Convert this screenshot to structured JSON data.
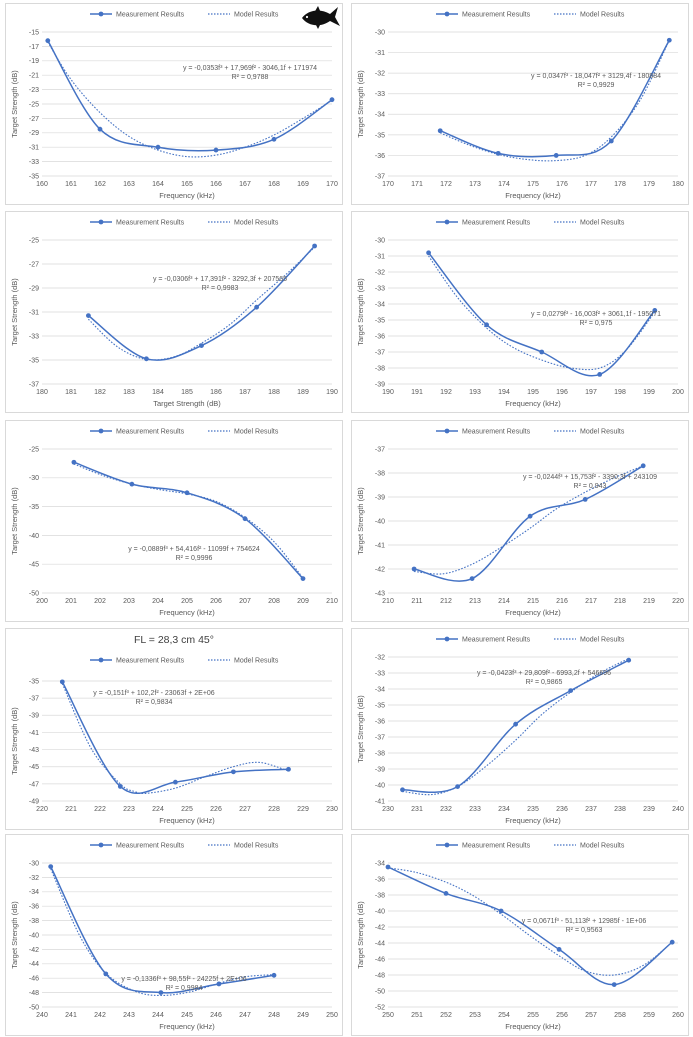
{
  "legend": {
    "measurement": "Measurement Results",
    "model": "Model Results"
  },
  "colors": {
    "series": "#4472c4",
    "grid": "#d9d9d9",
    "text": "#595959"
  },
  "chart_data": [
    {
      "type": "line",
      "title": "",
      "xlabel": "Frequency (kHz)",
      "ylabel": "Target Strength (dB)",
      "xlim": [
        160,
        170
      ],
      "xstep": 1,
      "ylim": [
        -35,
        -15
      ],
      "ystep": 2,
      "measured": [
        [
          160.2,
          -16.2
        ],
        [
          162,
          -28.5
        ],
        [
          164,
          -31
        ],
        [
          166,
          -31.4
        ],
        [
          168,
          -29.9
        ],
        [
          170,
          -24.4
        ]
      ],
      "model": [
        [
          160.2,
          -16.4
        ],
        [
          161,
          -21.6
        ],
        [
          162,
          -26.2
        ],
        [
          163,
          -29.5
        ],
        [
          164,
          -31.4
        ],
        [
          165,
          -32.3
        ],
        [
          166,
          -32.1
        ],
        [
          167,
          -31.0
        ],
        [
          168,
          -29.3
        ],
        [
          169,
          -27.0
        ],
        [
          170,
          -24.5
        ]
      ],
      "equation": "y = -0,0353f³ + 17,969f² - 3046,1f + 171974",
      "r2": "R² = 0,9788"
    },
    {
      "type": "line",
      "title": "",
      "xlabel": "Frequency (kHz)",
      "ylabel": "Target Strength (dB)",
      "xlim": [
        170,
        180
      ],
      "xstep": 1,
      "ylim": [
        -37,
        -30
      ],
      "ystep": 1,
      "measured": [
        [
          171.8,
          -34.8
        ],
        [
          173.8,
          -35.9
        ],
        [
          175.8,
          -36
        ],
        [
          177.7,
          -35.3
        ],
        [
          179.7,
          -30.4
        ]
      ],
      "model": [
        [
          171.8,
          -34.9
        ],
        [
          172.8,
          -35.5
        ],
        [
          173.8,
          -35.95
        ],
        [
          174.8,
          -36.2
        ],
        [
          175.8,
          -36.25
        ],
        [
          176.8,
          -36.0
        ],
        [
          177.7,
          -35.1
        ],
        [
          178.7,
          -33.3
        ],
        [
          179.7,
          -30.4
        ]
      ],
      "equation": "y = 0,0347f³ - 18,047f² + 3129,4f - 180884",
      "r2": "R² = 0,9929"
    },
    {
      "type": "line",
      "title": "",
      "xlabel": "Target Strength (dB)",
      "ylabel": "Target Strength (dB)",
      "xlim": [
        180,
        190
      ],
      "xstep": 1,
      "ylim": [
        -37,
        -25
      ],
      "ystep": 2,
      "measured": [
        [
          181.6,
          -31.3
        ],
        [
          183.6,
          -34.9
        ],
        [
          185.5,
          -33.8
        ],
        [
          187.4,
          -30.6
        ],
        [
          189.4,
          -25.5
        ]
      ],
      "model": [
        [
          181.6,
          -31.6
        ],
        [
          182.6,
          -33.9
        ],
        [
          183.6,
          -34.95
        ],
        [
          184.6,
          -34.7
        ],
        [
          185.5,
          -33.6
        ],
        [
          186.5,
          -32.0
        ],
        [
          187.4,
          -30.0
        ],
        [
          188.4,
          -27.9
        ],
        [
          189.4,
          -25.6
        ]
      ],
      "equation": "y = -0,0306f³ + 17,391f² - 3292,3f + 207565",
      "r2": "R² = 0,9983"
    },
    {
      "type": "line",
      "title": "",
      "xlabel": "Frequency (kHz)",
      "ylabel": "Target Strength (dB)",
      "xlim": [
        190,
        200
      ],
      "xstep": 1,
      "ylim": [
        -39,
        -30
      ],
      "ystep": 1,
      "measured": [
        [
          191.4,
          -30.8
        ],
        [
          193.4,
          -35.3
        ],
        [
          195.3,
          -37
        ],
        [
          197.3,
          -38.4
        ],
        [
          199.2,
          -34.4
        ]
      ],
      "model": [
        [
          191.4,
          -31.0
        ],
        [
          192.4,
          -33.6
        ],
        [
          193.4,
          -35.5
        ],
        [
          194.3,
          -36.7
        ],
        [
          195.3,
          -37.5
        ],
        [
          196.3,
          -38.0
        ],
        [
          197.3,
          -38.0
        ],
        [
          198.2,
          -36.9
        ],
        [
          199.2,
          -34.5
        ]
      ],
      "equation": "y = 0,0279f³ - 16,003f² + 3061,1f - 195071",
      "r2": "R² = 0,975"
    },
    {
      "type": "line",
      "title": "",
      "xlabel": "Frequency (kHz)",
      "ylabel": "Target Strength (dB)",
      "xlim": [
        200,
        210
      ],
      "xstep": 1,
      "ylim": [
        -50,
        -25
      ],
      "ystep": 5,
      "measured": [
        [
          201.1,
          -27.3
        ],
        [
          203.1,
          -31.1
        ],
        [
          205,
          -32.6
        ],
        [
          207,
          -37.1
        ],
        [
          209,
          -47.5
        ]
      ],
      "model": [
        [
          201.1,
          -27.6
        ],
        [
          202.1,
          -29.6
        ],
        [
          203.1,
          -31.1
        ],
        [
          204,
          -32.0
        ],
        [
          205,
          -32.8
        ],
        [
          206,
          -34.1
        ],
        [
          207,
          -36.9
        ],
        [
          208,
          -41.1
        ],
        [
          209,
          -47.4
        ]
      ],
      "equation": "y = -0,0889f³ + 54,416f² - 11099f + 754624",
      "r2": "R² = 0,9996"
    },
    {
      "type": "line",
      "title": "",
      "xlabel": "Frequency (kHz)",
      "ylabel": "Target Strength (dB)",
      "xlim": [
        210,
        220
      ],
      "xstep": 1,
      "ylim": [
        -43,
        -37
      ],
      "ystep": 1,
      "measured": [
        [
          210.9,
          -42
        ],
        [
          212.9,
          -42.4
        ],
        [
          214.9,
          -39.8
        ],
        [
          216.8,
          -39.1
        ],
        [
          218.8,
          -37.7
        ]
      ],
      "model": [
        [
          210.9,
          -42.1
        ],
        [
          211.9,
          -42.2
        ],
        [
          212.9,
          -41.8
        ],
        [
          213.9,
          -41.1
        ],
        [
          214.9,
          -40.3
        ],
        [
          215.8,
          -39.5
        ],
        [
          216.8,
          -38.8
        ],
        [
          217.8,
          -38.2
        ],
        [
          218.8,
          -37.7
        ]
      ],
      "equation": "y = -0,0244f³ + 15,753f² - 3390,3f + 243109",
      "r2": "R² = 0,943"
    },
    {
      "type": "line",
      "title": "FL = 28,3 cm 45°",
      "xlabel": "Frequency (kHz)",
      "ylabel": "Target Strength (dB)",
      "xlim": [
        220,
        230
      ],
      "xstep": 1,
      "ylim": [
        -49,
        -35
      ],
      "ystep": 2,
      "measured": [
        [
          220.7,
          -35.1
        ],
        [
          222.7,
          -47.3
        ],
        [
          224.6,
          -46.8
        ],
        [
          226.6,
          -45.6
        ],
        [
          228.5,
          -45.3
        ]
      ],
      "model": [
        [
          220.7,
          -35.3
        ],
        [
          221.7,
          -42.9
        ],
        [
          222.7,
          -47.0
        ],
        [
          223.2,
          -47.9
        ],
        [
          223.6,
          -48.1
        ],
        [
          224.6,
          -47.5
        ],
        [
          225.6,
          -46.2
        ],
        [
          226.6,
          -45.0
        ],
        [
          227.5,
          -44.5
        ],
        [
          228.5,
          -45.5
        ]
      ],
      "equation": "y = -0,151f³ + 102,2f² - 23063f + 2E+06",
      "r2": "R² = 0,9834"
    },
    {
      "type": "line",
      "title": "",
      "xlabel": "Frequency (kHz)",
      "ylabel": "Target Strength (dB)",
      "xlim": [
        230,
        240
      ],
      "xstep": 1,
      "ylim": [
        -41,
        -32
      ],
      "ystep": 1,
      "measured": [
        [
          230.5,
          -40.3
        ],
        [
          232.4,
          -40.1
        ],
        [
          234.4,
          -36.2
        ],
        [
          236.3,
          -34.1
        ],
        [
          238.3,
          -32.2
        ]
      ],
      "model": [
        [
          230.5,
          -40.4
        ],
        [
          231.5,
          -40.6
        ],
        [
          232.4,
          -40.1
        ],
        [
          233.4,
          -38.8
        ],
        [
          234.4,
          -37.2
        ],
        [
          235.3,
          -35.6
        ],
        [
          236.3,
          -34.2
        ],
        [
          237.3,
          -33.0
        ],
        [
          238.3,
          -32.1
        ]
      ],
      "equation": "y = -0,0423f³ + 29,809f² - 6993,2f + 546696",
      "r2": "R² = 0,9865"
    },
    {
      "type": "line",
      "title": "",
      "xlabel": "Frequency (kHz)",
      "ylabel": "Target Strength (dB)",
      "xlim": [
        240,
        250
      ],
      "xstep": 1,
      "ylim": [
        -50,
        -30
      ],
      "ystep": 2,
      "measured": [
        [
          240.3,
          -30.5
        ],
        [
          242.2,
          -45.4
        ],
        [
          244.1,
          -48
        ],
        [
          246.1,
          -46.8
        ],
        [
          248,
          -45.6
        ]
      ],
      "model": [
        [
          240.3,
          -30.8
        ],
        [
          241.3,
          -40.1
        ],
        [
          242.2,
          -45.3
        ],
        [
          243.2,
          -47.8
        ],
        [
          244.1,
          -48.4
        ],
        [
          245.1,
          -47.9
        ],
        [
          246.1,
          -46.7
        ],
        [
          247,
          -45.8
        ],
        [
          248,
          -45.5
        ]
      ],
      "equation": "y = -0,1336f³ + 98,55f² - 24225f + 2E+06",
      "r2": "R² = 0,9984"
    },
    {
      "type": "line",
      "title": "",
      "xlabel": "Frequency (kHz)",
      "ylabel": "Target Strength (dB)",
      "xlim": [
        250,
        260
      ],
      "xstep": 1,
      "ylim": [
        -52,
        -34
      ],
      "ystep": 2,
      "measured": [
        [
          250,
          -34.5
        ],
        [
          252,
          -37.8
        ],
        [
          253.9,
          -40
        ],
        [
          255.9,
          -44.8
        ],
        [
          257.8,
          -49.2
        ],
        [
          259.8,
          -43.9
        ]
      ],
      "model": [
        [
          250,
          -34.6
        ],
        [
          251,
          -35.2
        ],
        [
          252,
          -36.4
        ],
        [
          252.9,
          -38.0
        ],
        [
          253.9,
          -40.4
        ],
        [
          254.9,
          -43.1
        ],
        [
          255.9,
          -45.6
        ],
        [
          256.8,
          -47.5
        ],
        [
          257.8,
          -48.0
        ],
        [
          258.8,
          -46.8
        ],
        [
          259.8,
          -43.9
        ]
      ],
      "equation": "y = 0,0671f³ - 51,113f² + 12985f - 1E+06",
      "r2": "R² = 0,9563"
    }
  ]
}
